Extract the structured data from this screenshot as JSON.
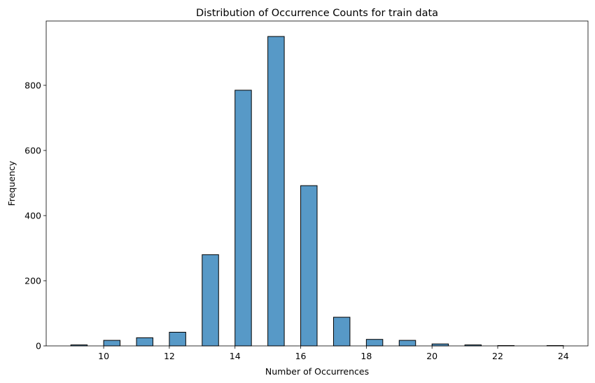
{
  "chart_data": {
    "type": "bar",
    "title": "Distribution of Occurrence Counts for train data",
    "xlabel": "Number of Occurrences",
    "ylabel": "Frequency",
    "bin_width": 0.5,
    "bins": [
      {
        "start": 9.0,
        "end": 9.5,
        "value": 3
      },
      {
        "start": 10.0,
        "end": 10.5,
        "value": 17
      },
      {
        "start": 11.0,
        "end": 11.5,
        "value": 25
      },
      {
        "start": 12.0,
        "end": 12.5,
        "value": 42
      },
      {
        "start": 13.0,
        "end": 13.5,
        "value": 280
      },
      {
        "start": 14.0,
        "end": 14.5,
        "value": 785
      },
      {
        "start": 15.0,
        "end": 15.5,
        "value": 950
      },
      {
        "start": 16.0,
        "end": 16.5,
        "value": 492
      },
      {
        "start": 17.0,
        "end": 17.5,
        "value": 88
      },
      {
        "start": 18.0,
        "end": 18.5,
        "value": 20
      },
      {
        "start": 19.0,
        "end": 19.5,
        "value": 17
      },
      {
        "start": 20.0,
        "end": 20.5,
        "value": 6
      },
      {
        "start": 21.0,
        "end": 21.5,
        "value": 3
      },
      {
        "start": 22.0,
        "end": 22.5,
        "value": 1
      },
      {
        "start": 23.5,
        "end": 24.0,
        "value": 1
      }
    ],
    "xlim": [
      8.25,
      24.75
    ],
    "ylim": [
      0,
      997.5
    ],
    "xticks": [
      10,
      12,
      14,
      16,
      18,
      20,
      22,
      24
    ],
    "yticks": [
      0,
      200,
      400,
      600,
      800
    ],
    "bar_color": "#5799c7",
    "bar_edge_color": "#000000",
    "grid": false
  }
}
